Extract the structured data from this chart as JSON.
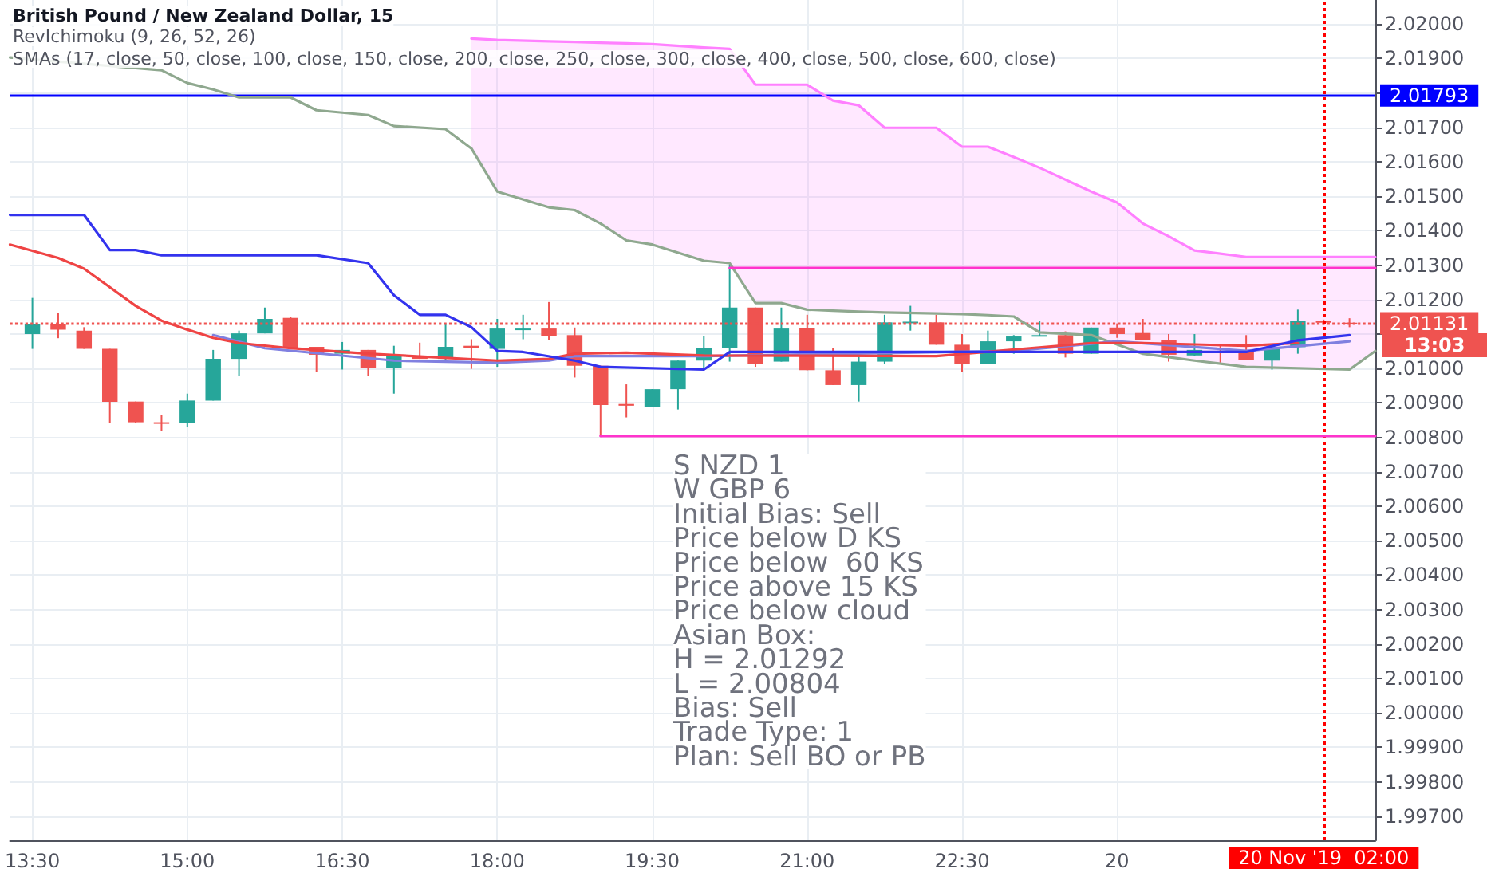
{
  "chart_data": {
    "type": "candlestick",
    "title": "British Pound / New Zealand Dollar, 15",
    "subtitle": "RevIchimoku (9, 26, 52, 26)",
    "annotations": [
      "SMAs (17, close, 50, close, 100, close, 150, close, 200, close, 250, close, 300, close, 400, close, 500, close, 600, close)",
      "13:03",
      "S NZD 1",
      "W GBP 6",
      "Initial Bias: Sell",
      "Price below D KS",
      "Price below  60 KS",
      "Price above 15 KS",
      "Price below cloud",
      "Asian Box:",
      "H = 2.01292",
      "L = 2.00804",
      "Bias: Sell",
      "Trade Type: 1",
      "Plan: Sell BO or PB"
    ],
    "x": [
      "2019-11-19T13:30",
      "2019-11-19T13:45",
      "2019-11-19T14:00",
      "2019-11-19T14:15",
      "2019-11-19T14:30",
      "2019-11-19T14:45",
      "2019-11-19T15:00",
      "2019-11-19T15:15",
      "2019-11-19T15:30",
      "2019-11-19T15:45",
      "2019-11-19T16:00",
      "2019-11-19T16:15",
      "2019-11-19T16:30",
      "2019-11-19T16:45",
      "2019-11-19T17:00",
      "2019-11-19T17:15",
      "2019-11-19T17:30",
      "2019-11-19T17:45",
      "2019-11-19T18:00",
      "2019-11-19T18:15",
      "2019-11-19T18:30",
      "2019-11-19T18:45",
      "2019-11-19T19:00",
      "2019-11-19T19:15",
      "2019-11-19T19:30",
      "2019-11-19T19:45",
      "2019-11-19T20:00",
      "2019-11-19T20:15",
      "2019-11-19T20:30",
      "2019-11-19T20:45",
      "2019-11-19T21:00",
      "2019-11-19T21:15",
      "2019-11-19T21:30",
      "2019-11-19T21:45",
      "2019-11-19T22:00",
      "2019-11-19T22:15",
      "2019-11-19T22:30",
      "2019-11-19T22:45",
      "2019-11-19T23:00",
      "2019-11-19T23:15",
      "2019-11-19T23:30",
      "2019-11-19T23:45",
      "2019-11-20T00:00",
      "2019-11-20T00:15",
      "2019-11-20T00:30",
      "2019-11-20T00:45",
      "2019-11-20T01:00",
      "2019-11-20T01:15",
      "2019-11-20T01:30",
      "2019-11-20T01:45",
      "2019-11-20T02:00",
      "2019-11-20T02:15"
    ],
    "ohlc": [
      [
        2.011,
        2.01205,
        2.01057,
        2.01128
      ],
      [
        2.01128,
        2.01162,
        2.01088,
        2.01113
      ],
      [
        2.0111,
        2.0112,
        2.01057,
        2.01057
      ],
      [
        2.01057,
        2.01057,
        2.00841,
        2.00903
      ],
      [
        2.00904,
        2.00904,
        2.00843,
        2.00844
      ],
      [
        2.00844,
        2.00866,
        2.00819,
        2.00843
      ],
      [
        2.00841,
        2.00927,
        2.0083,
        2.00907
      ],
      [
        2.00907,
        2.01054,
        2.00907,
        2.01028
      ],
      [
        2.01028,
        2.0111,
        2.00978,
        2.01102
      ],
      [
        2.01102,
        2.01177,
        2.01102,
        2.01144
      ],
      [
        2.01147,
        2.01151,
        2.01059,
        2.01059
      ],
      [
        2.01063,
        2.01063,
        2.00989,
        2.0104
      ],
      [
        2.01043,
        2.01077,
        2.00997,
        2.01054
      ],
      [
        2.01054,
        2.01054,
        2.00978,
        2.01001
      ],
      [
        2.01001,
        2.01066,
        2.00927,
        2.01036
      ],
      [
        2.01036,
        2.01075,
        2.01028,
        2.01028
      ],
      [
        2.01028,
        2.01131,
        2.01023,
        2.01063
      ],
      [
        2.01066,
        2.01085,
        2.00999,
        2.01059
      ],
      [
        2.01057,
        2.01144,
        2.01005,
        2.01116
      ],
      [
        2.01113,
        2.01156,
        2.01085,
        2.01116
      ],
      [
        2.01116,
        2.01193,
        2.01082,
        2.01094
      ],
      [
        2.01097,
        2.01119,
        2.00974,
        2.01008
      ],
      [
        2.01008,
        2.01008,
        2.00801,
        2.00894
      ],
      [
        2.00897,
        2.00954,
        2.00858,
        2.00892
      ],
      [
        2.00889,
        2.0094,
        2.00889,
        2.0094
      ],
      [
        2.0094,
        2.01023,
        2.00881,
        2.01023
      ],
      [
        2.01023,
        2.01094,
        2.00997,
        2.01059
      ],
      [
        2.01059,
        2.013,
        2.0102,
        2.01177
      ],
      [
        2.01177,
        2.01177,
        2.01005,
        2.01013
      ],
      [
        2.0102,
        2.01177,
        2.0102,
        2.01116
      ],
      [
        2.01116,
        2.01156,
        2.00995,
        2.00995
      ],
      [
        2.00995,
        2.01059,
        2.00952,
        2.00952
      ],
      [
        2.00952,
        2.01043,
        2.00904,
        2.0102
      ],
      [
        2.0102,
        2.01156,
        2.01013,
        2.01134
      ],
      [
        2.01134,
        2.01182,
        2.0111,
        2.01136
      ],
      [
        2.01134,
        2.01156,
        2.01069,
        2.01069
      ],
      [
        2.01069,
        2.011,
        2.00989,
        2.01014
      ],
      [
        2.01014,
        2.0111,
        2.01014,
        2.01079
      ],
      [
        2.01079,
        2.01097,
        2.01043,
        2.01093
      ],
      [
        2.01094,
        2.01138,
        2.01094,
        2.01097
      ],
      [
        2.01097,
        2.01108,
        2.01032,
        2.01043
      ],
      [
        2.01043,
        2.01119,
        2.01043,
        2.01119
      ],
      [
        2.01119,
        2.01131,
        2.01089,
        2.011
      ],
      [
        2.01103,
        2.01144,
        2.01082,
        2.01082
      ],
      [
        2.01082,
        2.011,
        2.0102,
        2.0104
      ],
      [
        2.01038,
        2.011,
        2.01036,
        2.01054
      ],
      [
        2.01051,
        2.01066,
        2.01017,
        2.01048
      ],
      [
        2.01054,
        2.01097,
        2.01025,
        2.01025
      ],
      [
        2.01023,
        2.01062,
        2.00997,
        2.01062
      ],
      [
        2.01062,
        2.01171,
        2.01043,
        2.01139
      ],
      [
        2.01139,
        2.01142,
        2.01127,
        2.01133
      ],
      [
        2.01133,
        2.01146,
        2.0112,
        2.01131
      ]
    ],
    "colors": [
      "#26a69a",
      "#ef5350",
      "#ef5350",
      "#ef5350",
      "#ef5350",
      "#ef5350",
      "#26a69a",
      "#26a69a",
      "#26a69a",
      "#26a69a",
      "#ef5350",
      "#ef5350",
      "#26a69a",
      "#ef5350",
      "#26a69a",
      "#ef5350",
      "#26a69a",
      "#ef5350",
      "#26a69a",
      "#26a69a",
      "#ef5350",
      "#ef5350",
      "#ef5350",
      "#ef5350",
      "#26a69a",
      "#26a69a",
      "#26a69a",
      "#26a69a",
      "#ef5350",
      "#26a69a",
      "#ef5350",
      "#ef5350",
      "#26a69a",
      "#26a69a",
      "#26a69a",
      "#ef5350",
      "#ef5350",
      "#26a69a",
      "#26a69a",
      "#26a69a",
      "#ef5350",
      "#26a69a",
      "#ef5350",
      "#ef5350",
      "#ef5350",
      "#26a69a",
      "#ef5350",
      "#ef5350",
      "#26a69a",
      "#26a69a",
      "#ef5350",
      "#ef5350"
    ],
    "series": [
      {
        "type": "line",
        "color": "#ff80ff",
        "x": [
          "2019-11-19T17:45",
          "2019-11-19T18:00",
          "2019-11-19T18:30",
          "2019-11-19T18:45",
          "2019-11-19T19:00",
          "2019-11-19T19:15",
          "2019-11-19T19:30",
          "2019-11-19T20:00",
          "2019-11-19T20:15",
          "2019-11-19T20:30",
          "2019-11-19T20:45",
          "2019-11-19T21:00",
          "2019-11-19T21:15",
          "2019-11-19T21:30",
          "2019-11-19T21:45",
          "2019-11-19T22:15",
          "2019-11-19T22:30",
          "2019-11-19T22:45",
          "2019-11-19T23:00",
          "2019-11-19T23:15",
          "2019-11-19T23:45",
          "2019-11-20T00:00",
          "2019-11-20T00:15",
          "2019-11-20T00:30",
          "2019-11-20T00:45",
          "2019-11-20T01:15",
          "2019-11-20T02:15",
          "2019-11-20T02:30"
        ],
        "values": [
          2.01958,
          2.01954,
          2.0195,
          2.01948,
          2.01946,
          2.01944,
          2.01942,
          2.01932,
          2.01928,
          2.01824,
          2.01824,
          2.01824,
          2.01778,
          2.01764,
          2.01699,
          2.01699,
          2.01644,
          2.01644,
          2.01614,
          2.01583,
          2.01514,
          2.01482,
          2.01421,
          2.01384,
          2.01343,
          2.01324,
          2.01324,
          2.01324
        ],
        "lower": [
          2.01639,
          2.01514,
          2.01468,
          2.0146,
          2.01421,
          2.01372,
          2.0136,
          2.01313,
          2.01306,
          2.0119,
          2.0119,
          2.01171,
          2.01168,
          2.01165,
          2.01163,
          2.0116,
          2.01158,
          2.01155,
          2.01151,
          2.01105,
          2.01097,
          2.0107,
          2.01043,
          2.01033,
          2.01023,
          2.01005,
          2.00997,
          2.01051
        ],
        "upper": [
          2.01958,
          2.01954,
          2.0195,
          2.01948,
          2.01946,
          2.01944,
          2.01942,
          2.01932,
          2.01928,
          2.01824,
          2.01824,
          2.01824,
          2.01778,
          2.01764,
          2.01699,
          2.01699,
          2.01644,
          2.01644,
          2.01614,
          2.01583,
          2.01514,
          2.01482,
          2.01421,
          2.01384,
          2.01343,
          2.01324,
          2.01324,
          2.01324
        ]
      },
      {
        "type": "line",
        "color": "#8fa88f",
        "x": [
          "2019-11-19T13:17",
          "2019-11-19T14:45",
          "2019-11-19T15:00",
          "2019-11-19T15:15",
          "2019-11-19T15:30",
          "2019-11-19T16:00",
          "2019-11-19T16:15",
          "2019-11-19T16:45",
          "2019-11-19T17:00",
          "2019-11-19T17:30",
          "2019-11-19T17:45",
          "2019-11-19T18:00",
          "2019-11-19T18:30",
          "2019-11-19T18:45",
          "2019-11-19T19:00",
          "2019-11-19T19:15",
          "2019-11-19T19:30",
          "2019-11-19T20:00",
          "2019-11-19T20:15",
          "2019-11-19T20:30",
          "2019-11-19T20:45",
          "2019-11-19T21:00",
          "2019-11-19T21:15",
          "2019-11-19T21:30",
          "2019-11-19T21:45",
          "2019-11-19T22:15",
          "2019-11-19T22:30",
          "2019-11-19T22:45",
          "2019-11-19T23:00",
          "2019-11-19T23:15",
          "2019-11-19T23:45",
          "2019-11-20T00:00",
          "2019-11-20T00:15",
          "2019-11-20T00:30",
          "2019-11-20T00:45",
          "2019-11-20T01:15",
          "2019-11-20T02:15",
          "2019-11-20T02:30"
        ],
        "values": [
          2.01903,
          2.01866,
          2.01829,
          2.0181,
          2.01787,
          2.01787,
          2.0175,
          2.01736,
          2.01704,
          2.01695,
          2.01639,
          2.01514,
          2.01468,
          2.0146,
          2.01421,
          2.01372,
          2.0136,
          2.01313,
          2.01306,
          2.0119,
          2.0119,
          2.01171,
          2.01168,
          2.01165,
          2.01163,
          2.0116,
          2.01158,
          2.01155,
          2.01151,
          2.01105,
          2.01097,
          2.0107,
          2.01043,
          2.01033,
          2.01023,
          2.01005,
          2.00997,
          2.01051
        ]
      },
      {
        "type": "line",
        "color": "#8080e0",
        "x": [
          "2019-11-19T15:15",
          "2019-11-19T15:45",
          "2019-11-19T17:00",
          "2019-11-19T18:00",
          "2019-11-19T18:30",
          "2019-11-19T18:45",
          "2019-11-19T20:00",
          "2019-11-19T23:00",
          "2019-11-20T00:00",
          "2019-11-20T01:15",
          "2019-11-20T02:15"
        ],
        "values": [
          2.01097,
          2.01059,
          2.01023,
          2.01017,
          2.01023,
          2.01036,
          2.01036,
          2.01051,
          2.01079,
          2.01051,
          2.01079
        ]
      },
      {
        "type": "line",
        "color": "#ef4444",
        "x": [
          "2019-11-19T13:17",
          "2019-11-19T13:45",
          "2019-11-19T14:00",
          "2019-11-19T14:15",
          "2019-11-19T14:30",
          "2019-11-19T14:45",
          "2019-11-19T15:00",
          "2019-11-19T15:15",
          "2019-11-19T15:30",
          "2019-11-19T16:00",
          "2019-11-19T16:45",
          "2019-11-19T18:00",
          "2019-11-19T18:30",
          "2019-11-19T18:45",
          "2019-11-19T19:15",
          "2019-11-19T20:00",
          "2019-11-19T22:15",
          "2019-11-19T23:45",
          "2019-11-20T00:15",
          "2019-11-20T01:15",
          "2019-11-20T01:45"
        ],
        "values": [
          2.0136,
          2.01321,
          2.0129,
          2.01236,
          2.01182,
          2.01139,
          2.01113,
          2.01089,
          2.01074,
          2.01059,
          2.01043,
          2.01023,
          2.01028,
          2.01043,
          2.01046,
          2.01038,
          2.01036,
          2.01074,
          2.01074,
          2.01066,
          2.01074
        ]
      },
      {
        "type": "line",
        "color": "#3333ee",
        "x": [
          "2019-11-19T13:17",
          "2019-11-19T14:00",
          "2019-11-19T14:15",
          "2019-11-19T14:30",
          "2019-11-19T14:45",
          "2019-11-19T16:15",
          "2019-11-19T16:45",
          "2019-11-19T17:00",
          "2019-11-19T17:15",
          "2019-11-19T17:30",
          "2019-11-19T17:45",
          "2019-11-19T18:00",
          "2019-11-19T18:15",
          "2019-11-19T18:45",
          "2019-11-19T19:00",
          "2019-11-19T20:00",
          "2019-11-19T20:15",
          "2019-11-20T01:15",
          "2019-11-20T01:45",
          "2019-11-20T02:15"
        ],
        "values": [
          2.01446,
          2.01446,
          2.01344,
          2.01344,
          2.01329,
          2.01329,
          2.01306,
          2.01213,
          2.01156,
          2.01156,
          2.0112,
          2.01051,
          2.01048,
          2.01023,
          2.01005,
          2.00997,
          2.01048,
          2.01048,
          2.01082,
          2.01097
        ]
      },
      {
        "type": "line",
        "color": "#ff33cc",
        "x": [
          "2019-11-19T20:15",
          "2019-11-20T02:30"
        ],
        "values": [
          2.01292,
          2.01292
        ]
      },
      {
        "type": "line",
        "color": "#ff33cc",
        "x": [
          "2019-11-19T19:00",
          "2019-11-20T02:30"
        ],
        "values": [
          2.00804,
          2.00804
        ]
      }
    ],
    "ref_lines": [
      {
        "axis": "y",
        "value": 2.01793,
        "label": "2.01793",
        "color": "#0000ff",
        "line_style": "solid"
      },
      {
        "axis": "y",
        "value": 2.01131,
        "label": "2.01131",
        "color": "#ef5350",
        "line_style": "dotted"
      },
      {
        "axis": "x",
        "value": "2019-11-20T02:00",
        "label": "20 Nov '19  02:00",
        "color": "#ff0000",
        "line_style": "dotted"
      }
    ],
    "xlim": [
      "2019-11-19T13:17",
      "2019-11-20T02:30"
    ],
    "xticks": [
      {
        "value": "2019-11-19T13:30",
        "label": "13:30"
      },
      {
        "value": "2019-11-19T15:00",
        "label": "15:00"
      },
      {
        "value": "2019-11-19T16:30",
        "label": "16:30"
      },
      {
        "value": "2019-11-19T18:00",
        "label": "18:00"
      },
      {
        "value": "2019-11-19T19:30",
        "label": "19:30"
      },
      {
        "value": "2019-11-19T21:00",
        "label": "21:00"
      },
      {
        "value": "2019-11-19T22:30",
        "label": "22:30"
      },
      {
        "value": "2019-11-20T00:00",
        "label": "20"
      }
    ],
    "ylim": [
      1.9963,
      2.0207
    ],
    "yticks": [
      {
        "value": 1.997,
        "label": "1.99700"
      },
      {
        "value": 1.998,
        "label": "1.99800"
      },
      {
        "value": 1.999,
        "label": "1.99900"
      },
      {
        "value": 2.0,
        "label": "2.00000"
      },
      {
        "value": 2.001,
        "label": "2.00100"
      },
      {
        "value": 2.002,
        "label": "2.00200"
      },
      {
        "value": 2.003,
        "label": "2.00300"
      },
      {
        "value": 2.004,
        "label": "2.00400"
      },
      {
        "value": 2.005,
        "label": "2.00500"
      },
      {
        "value": 2.006,
        "label": "2.00600"
      },
      {
        "value": 2.007,
        "label": "2.00700"
      },
      {
        "value": 2.008,
        "label": "2.00800"
      },
      {
        "value": 2.009,
        "label": "2.00900"
      },
      {
        "value": 2.01,
        "label": "2.01000"
      },
      {
        "value": 2.011,
        "label": null
      },
      {
        "value": 2.012,
        "label": "2.01200"
      },
      {
        "value": 2.013,
        "label": "2.01300"
      },
      {
        "value": 2.014,
        "label": "2.01400"
      },
      {
        "value": 2.015,
        "label": "2.01500"
      },
      {
        "value": 2.016,
        "label": "2.01600"
      },
      {
        "value": 2.017,
        "label": "2.01700"
      },
      {
        "value": 2.018,
        "label": null
      },
      {
        "value": 2.019,
        "label": "2.01900"
      },
      {
        "value": 2.02,
        "label": "2.02000"
      }
    ],
    "grid": true,
    "legend": false,
    "marker": "none",
    "line_style": "solid"
  }
}
